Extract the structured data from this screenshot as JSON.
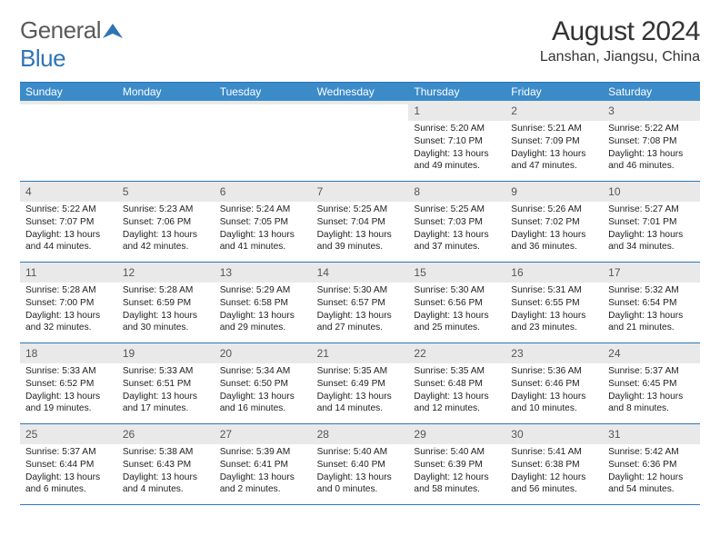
{
  "brand": {
    "word1": "General",
    "word2": "Blue"
  },
  "title": "August 2024",
  "location": "Lanshan, Jiangsu, China",
  "day_header_bg": "#3b8bc9",
  "day_header_text": "#ffffff",
  "border_color": "#2e75b6",
  "daynum_bg": "#e9e9e9",
  "text_color": "#222222",
  "columns": [
    "Sunday",
    "Monday",
    "Tuesday",
    "Wednesday",
    "Thursday",
    "Friday",
    "Saturday"
  ],
  "weeks": [
    [
      {
        "day": "",
        "sunrise": "",
        "sunset": "",
        "daylight": ""
      },
      {
        "day": "",
        "sunrise": "",
        "sunset": "",
        "daylight": ""
      },
      {
        "day": "",
        "sunrise": "",
        "sunset": "",
        "daylight": ""
      },
      {
        "day": "",
        "sunrise": "",
        "sunset": "",
        "daylight": ""
      },
      {
        "day": "1",
        "sunrise": "Sunrise: 5:20 AM",
        "sunset": "Sunset: 7:10 PM",
        "daylight": "Daylight: 13 hours and 49 minutes."
      },
      {
        "day": "2",
        "sunrise": "Sunrise: 5:21 AM",
        "sunset": "Sunset: 7:09 PM",
        "daylight": "Daylight: 13 hours and 47 minutes."
      },
      {
        "day": "3",
        "sunrise": "Sunrise: 5:22 AM",
        "sunset": "Sunset: 7:08 PM",
        "daylight": "Daylight: 13 hours and 46 minutes."
      }
    ],
    [
      {
        "day": "4",
        "sunrise": "Sunrise: 5:22 AM",
        "sunset": "Sunset: 7:07 PM",
        "daylight": "Daylight: 13 hours and 44 minutes."
      },
      {
        "day": "5",
        "sunrise": "Sunrise: 5:23 AM",
        "sunset": "Sunset: 7:06 PM",
        "daylight": "Daylight: 13 hours and 42 minutes."
      },
      {
        "day": "6",
        "sunrise": "Sunrise: 5:24 AM",
        "sunset": "Sunset: 7:05 PM",
        "daylight": "Daylight: 13 hours and 41 minutes."
      },
      {
        "day": "7",
        "sunrise": "Sunrise: 5:25 AM",
        "sunset": "Sunset: 7:04 PM",
        "daylight": "Daylight: 13 hours and 39 minutes."
      },
      {
        "day": "8",
        "sunrise": "Sunrise: 5:25 AM",
        "sunset": "Sunset: 7:03 PM",
        "daylight": "Daylight: 13 hours and 37 minutes."
      },
      {
        "day": "9",
        "sunrise": "Sunrise: 5:26 AM",
        "sunset": "Sunset: 7:02 PM",
        "daylight": "Daylight: 13 hours and 36 minutes."
      },
      {
        "day": "10",
        "sunrise": "Sunrise: 5:27 AM",
        "sunset": "Sunset: 7:01 PM",
        "daylight": "Daylight: 13 hours and 34 minutes."
      }
    ],
    [
      {
        "day": "11",
        "sunrise": "Sunrise: 5:28 AM",
        "sunset": "Sunset: 7:00 PM",
        "daylight": "Daylight: 13 hours and 32 minutes."
      },
      {
        "day": "12",
        "sunrise": "Sunrise: 5:28 AM",
        "sunset": "Sunset: 6:59 PM",
        "daylight": "Daylight: 13 hours and 30 minutes."
      },
      {
        "day": "13",
        "sunrise": "Sunrise: 5:29 AM",
        "sunset": "Sunset: 6:58 PM",
        "daylight": "Daylight: 13 hours and 29 minutes."
      },
      {
        "day": "14",
        "sunrise": "Sunrise: 5:30 AM",
        "sunset": "Sunset: 6:57 PM",
        "daylight": "Daylight: 13 hours and 27 minutes."
      },
      {
        "day": "15",
        "sunrise": "Sunrise: 5:30 AM",
        "sunset": "Sunset: 6:56 PM",
        "daylight": "Daylight: 13 hours and 25 minutes."
      },
      {
        "day": "16",
        "sunrise": "Sunrise: 5:31 AM",
        "sunset": "Sunset: 6:55 PM",
        "daylight": "Daylight: 13 hours and 23 minutes."
      },
      {
        "day": "17",
        "sunrise": "Sunrise: 5:32 AM",
        "sunset": "Sunset: 6:54 PM",
        "daylight": "Daylight: 13 hours and 21 minutes."
      }
    ],
    [
      {
        "day": "18",
        "sunrise": "Sunrise: 5:33 AM",
        "sunset": "Sunset: 6:52 PM",
        "daylight": "Daylight: 13 hours and 19 minutes."
      },
      {
        "day": "19",
        "sunrise": "Sunrise: 5:33 AM",
        "sunset": "Sunset: 6:51 PM",
        "daylight": "Daylight: 13 hours and 17 minutes."
      },
      {
        "day": "20",
        "sunrise": "Sunrise: 5:34 AM",
        "sunset": "Sunset: 6:50 PM",
        "daylight": "Daylight: 13 hours and 16 minutes."
      },
      {
        "day": "21",
        "sunrise": "Sunrise: 5:35 AM",
        "sunset": "Sunset: 6:49 PM",
        "daylight": "Daylight: 13 hours and 14 minutes."
      },
      {
        "day": "22",
        "sunrise": "Sunrise: 5:35 AM",
        "sunset": "Sunset: 6:48 PM",
        "daylight": "Daylight: 13 hours and 12 minutes."
      },
      {
        "day": "23",
        "sunrise": "Sunrise: 5:36 AM",
        "sunset": "Sunset: 6:46 PM",
        "daylight": "Daylight: 13 hours and 10 minutes."
      },
      {
        "day": "24",
        "sunrise": "Sunrise: 5:37 AM",
        "sunset": "Sunset: 6:45 PM",
        "daylight": "Daylight: 13 hours and 8 minutes."
      }
    ],
    [
      {
        "day": "25",
        "sunrise": "Sunrise: 5:37 AM",
        "sunset": "Sunset: 6:44 PM",
        "daylight": "Daylight: 13 hours and 6 minutes."
      },
      {
        "day": "26",
        "sunrise": "Sunrise: 5:38 AM",
        "sunset": "Sunset: 6:43 PM",
        "daylight": "Daylight: 13 hours and 4 minutes."
      },
      {
        "day": "27",
        "sunrise": "Sunrise: 5:39 AM",
        "sunset": "Sunset: 6:41 PM",
        "daylight": "Daylight: 13 hours and 2 minutes."
      },
      {
        "day": "28",
        "sunrise": "Sunrise: 5:40 AM",
        "sunset": "Sunset: 6:40 PM",
        "daylight": "Daylight: 13 hours and 0 minutes."
      },
      {
        "day": "29",
        "sunrise": "Sunrise: 5:40 AM",
        "sunset": "Sunset: 6:39 PM",
        "daylight": "Daylight: 12 hours and 58 minutes."
      },
      {
        "day": "30",
        "sunrise": "Sunrise: 5:41 AM",
        "sunset": "Sunset: 6:38 PM",
        "daylight": "Daylight: 12 hours and 56 minutes."
      },
      {
        "day": "31",
        "sunrise": "Sunrise: 5:42 AM",
        "sunset": "Sunset: 6:36 PM",
        "daylight": "Daylight: 12 hours and 54 minutes."
      }
    ]
  ]
}
